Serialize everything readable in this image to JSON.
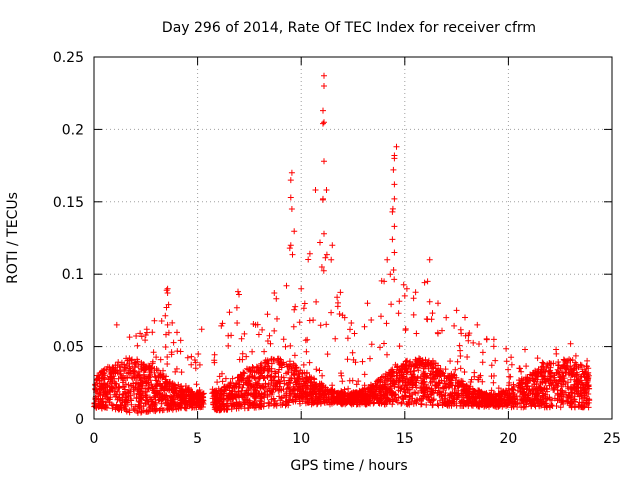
{
  "chart_data": {
    "type": "scatter",
    "title": "Day 296 of 2014, Rate Of TEC Index for receiver cfrm",
    "xlabel": "GPS time / hours",
    "ylabel": "ROTI / TECUs",
    "xlim": [
      0,
      25
    ],
    "ylim": [
      0,
      0.25
    ],
    "xticks": [
      0,
      5,
      10,
      15,
      20,
      25
    ],
    "yticks": [
      0,
      0.05,
      0.1,
      0.15,
      0.2,
      0.25
    ],
    "xtick_labels": [
      "0",
      "5",
      "10",
      "15",
      "20",
      "25"
    ],
    "ytick_labels": [
      "0",
      "0.05",
      "0.1",
      "0.15",
      "0.2",
      "0.25"
    ],
    "grid": true,
    "marker": "+",
    "color": "#ff0000",
    "series": [
      {
        "name": "ROTI",
        "x_range": [
          0,
          23.9
        ],
        "data_gap": [
          5.3,
          5.7
        ],
        "envelope_upper": [
          [
            0.0,
            0.035
          ],
          [
            1.0,
            0.038
          ],
          [
            1.1,
            0.065
          ],
          [
            2.5,
            0.062
          ],
          [
            3.5,
            0.09
          ],
          [
            4.5,
            0.045
          ],
          [
            5.2,
            0.062
          ],
          [
            6.0,
            0.066
          ],
          [
            7.0,
            0.088
          ],
          [
            8.0,
            0.07
          ],
          [
            9.0,
            0.087
          ],
          [
            9.5,
            0.17
          ],
          [
            10.0,
            0.075
          ],
          [
            11.0,
            0.237
          ],
          [
            11.5,
            0.12
          ],
          [
            12.5,
            0.07
          ],
          [
            13.5,
            0.08
          ],
          [
            14.2,
            0.11
          ],
          [
            14.5,
            0.188
          ],
          [
            15.0,
            0.085
          ],
          [
            16.0,
            0.11
          ],
          [
            17.0,
            0.078
          ],
          [
            18.0,
            0.07
          ],
          [
            19.0,
            0.055
          ],
          [
            20.0,
            0.05
          ],
          [
            21.0,
            0.045
          ],
          [
            22.0,
            0.048
          ],
          [
            23.0,
            0.05
          ],
          [
            23.9,
            0.04
          ]
        ],
        "envelope_lower": [
          [
            0.0,
            0.008
          ],
          [
            2.0,
            0.004
          ],
          [
            5.0,
            0.008
          ],
          [
            6.0,
            0.006
          ],
          [
            10.0,
            0.01
          ],
          [
            15.0,
            0.01
          ],
          [
            20.0,
            0.008
          ],
          [
            23.9,
            0.008
          ]
        ],
        "peaks": [
          {
            "x": 11.1,
            "y": 0.237
          },
          {
            "x": 11.1,
            "y": 0.23
          },
          {
            "x": 11.05,
            "y": 0.213
          },
          {
            "x": 11.1,
            "y": 0.205
          },
          {
            "x": 11.05,
            "y": 0.204
          },
          {
            "x": 11.1,
            "y": 0.178
          },
          {
            "x": 11.05,
            "y": 0.152
          },
          {
            "x": 11.1,
            "y": 0.128
          },
          {
            "x": 11.0,
            "y": 0.105
          },
          {
            "x": 14.6,
            "y": 0.188
          },
          {
            "x": 14.5,
            "y": 0.182
          },
          {
            "x": 14.5,
            "y": 0.18
          },
          {
            "x": 14.45,
            "y": 0.172
          },
          {
            "x": 14.5,
            "y": 0.162
          },
          {
            "x": 14.5,
            "y": 0.152
          },
          {
            "x": 14.4,
            "y": 0.143
          },
          {
            "x": 14.5,
            "y": 0.133
          },
          {
            "x": 14.4,
            "y": 0.124
          },
          {
            "x": 14.5,
            "y": 0.115
          },
          {
            "x": 14.15,
            "y": 0.11
          },
          {
            "x": 14.3,
            "y": 0.1
          },
          {
            "x": 9.55,
            "y": 0.17
          },
          {
            "x": 9.5,
            "y": 0.165
          },
          {
            "x": 9.5,
            "y": 0.153
          },
          {
            "x": 9.55,
            "y": 0.145
          },
          {
            "x": 9.5,
            "y": 0.12
          },
          {
            "x": 9.45,
            "y": 0.118
          },
          {
            "x": 16.2,
            "y": 0.11
          },
          {
            "x": 16.1,
            "y": 0.095
          },
          {
            "x": 3.55,
            "y": 0.09
          },
          {
            "x": 3.55,
            "y": 0.087
          },
          {
            "x": 3.6,
            "y": 0.079
          },
          {
            "x": 3.5,
            "y": 0.077
          },
          {
            "x": 3.55,
            "y": 0.065
          },
          {
            "x": 1.1,
            "y": 0.065
          },
          {
            "x": 2.55,
            "y": 0.062
          },
          {
            "x": 2.5,
            "y": 0.058
          },
          {
            "x": 6.95,
            "y": 0.088
          },
          {
            "x": 7.0,
            "y": 0.086
          },
          {
            "x": 8.7,
            "y": 0.087
          },
          {
            "x": 8.8,
            "y": 0.083
          },
          {
            "x": 10.0,
            "y": 0.09
          },
          {
            "x": 11.5,
            "y": 0.12
          },
          {
            "x": 11.45,
            "y": 0.11
          },
          {
            "x": 13.2,
            "y": 0.08
          },
          {
            "x": 14.0,
            "y": 0.095
          },
          {
            "x": 15.1,
            "y": 0.09
          },
          {
            "x": 15.0,
            "y": 0.085
          },
          {
            "x": 16.6,
            "y": 0.08
          },
          {
            "x": 17.0,
            "y": 0.07
          },
          {
            "x": 17.5,
            "y": 0.075
          },
          {
            "x": 18.5,
            "y": 0.065
          },
          {
            "x": 19.3,
            "y": 0.055
          },
          {
            "x": 20.8,
            "y": 0.048
          },
          {
            "x": 22.3,
            "y": 0.048
          },
          {
            "x": 23.0,
            "y": 0.052
          },
          {
            "x": 6.2,
            "y": 0.066
          },
          {
            "x": 5.2,
            "y": 0.062
          },
          {
            "x": 7.8,
            "y": 0.065
          },
          {
            "x": 12.1,
            "y": 0.07
          }
        ]
      }
    ]
  }
}
